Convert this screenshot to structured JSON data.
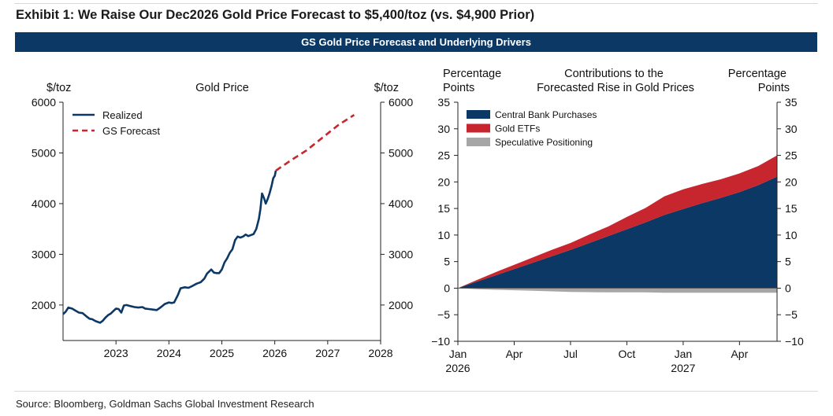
{
  "header": {
    "title": "Exhibit 1: We Raise Our Dec2026 Gold Price Forecast to $5,400/toz (vs. $4,900 Prior)",
    "banner": "GS Gold Price Forecast and Underlying Drivers"
  },
  "footer": {
    "source": "Source: Bloomberg, Goldman Sachs Global Investment Research"
  },
  "colors": {
    "navy": "#0c3866",
    "red": "#c8262e",
    "gray": "#a6a6a6"
  },
  "chart_data": [
    {
      "type": "line",
      "title": "Gold Price",
      "ylabel_left": "$/toz",
      "ylabel_right": "$/toz",
      "ylim": [
        1300,
        6000
      ],
      "yticks": [
        2000,
        3000,
        4000,
        5000,
        6000
      ],
      "xlim": [
        2022.0,
        2028.0
      ],
      "xticks": [
        2023,
        2024,
        2025,
        2026,
        2027,
        2028
      ],
      "xtick_labels": [
        "2023",
        "2024",
        "2025",
        "2026",
        "2027",
        "2028"
      ],
      "legend": "top-left",
      "series": [
        {
          "name": "Realized",
          "color": "#0c3866",
          "style": "solid",
          "x": [
            2022.0,
            2022.05,
            2022.1,
            2022.17,
            2022.25,
            2022.3,
            2022.37,
            2022.45,
            2022.5,
            2022.55,
            2022.62,
            2022.7,
            2022.75,
            2022.8,
            2022.85,
            2022.9,
            2022.95,
            2023.0,
            2023.05,
            2023.1,
            2023.15,
            2023.2,
            2023.27,
            2023.35,
            2023.42,
            2023.5,
            2023.55,
            2023.62,
            2023.7,
            2023.77,
            2023.85,
            2023.92,
            2024.0,
            2024.05,
            2024.1,
            2024.17,
            2024.22,
            2024.3,
            2024.37,
            2024.45,
            2024.52,
            2024.6,
            2024.67,
            2024.72,
            2024.8,
            2024.85,
            2024.9,
            2024.95,
            2025.0,
            2025.05,
            2025.1,
            2025.15,
            2025.2,
            2025.25,
            2025.3,
            2025.35,
            2025.4,
            2025.45,
            2025.5,
            2025.55,
            2025.6,
            2025.65,
            2025.7,
            2025.73,
            2025.76,
            2025.8,
            2025.83,
            2025.87,
            2025.9,
            2025.94,
            2025.97,
            2026.0,
            2026.02
          ],
          "y": [
            1820,
            1870,
            1950,
            1930,
            1880,
            1850,
            1840,
            1770,
            1730,
            1720,
            1680,
            1650,
            1690,
            1750,
            1800,
            1830,
            1880,
            1930,
            1920,
            1850,
            1990,
            2000,
            1980,
            1960,
            1950,
            1960,
            1930,
            1920,
            1910,
            1900,
            1960,
            2020,
            2050,
            2040,
            2050,
            2200,
            2330,
            2350,
            2340,
            2380,
            2420,
            2450,
            2520,
            2620,
            2700,
            2640,
            2630,
            2630,
            2700,
            2840,
            2920,
            3030,
            3100,
            3280,
            3350,
            3330,
            3350,
            3390,
            3360,
            3380,
            3400,
            3500,
            3700,
            3900,
            4200,
            4100,
            4000,
            4100,
            4200,
            4350,
            4500,
            4550,
            4650
          ]
        },
        {
          "name": "GS Forecast",
          "color": "#c8262e",
          "style": "dashed",
          "x": [
            2026.02,
            2026.3,
            2026.6,
            2026.9,
            2027.2,
            2027.5
          ],
          "y": [
            4650,
            4850,
            5050,
            5300,
            5550,
            5750
          ]
        }
      ]
    },
    {
      "type": "area",
      "title": "Contributions to the Forecasted Rise in Gold Prices",
      "ylabel_left": "Percentage Points",
      "ylabel_right": "Percentage Points",
      "ylim": [
        -10,
        35
      ],
      "yticks": [
        -10,
        -5,
        0,
        5,
        10,
        15,
        20,
        25,
        30,
        35
      ],
      "xlim": [
        0,
        12
      ],
      "xticks": [
        0,
        3,
        6,
        9,
        12,
        15
      ],
      "xtick_labels": [
        "Jan",
        "Apr",
        "Jul",
        "Oct",
        "Jan",
        "Apr"
      ],
      "xtick_year_labels": [
        "2026",
        "",
        "",
        "",
        "2027",
        ""
      ],
      "x_months": [
        "Jan 2026",
        "Feb 2026",
        "Mar 2026",
        "Apr 2026",
        "May 2026",
        "Jun 2026",
        "Jul 2026",
        "Aug 2026",
        "Sep 2026",
        "Oct 2026",
        "Nov 2026",
        "Dec 2026",
        "Jan 2027",
        "Feb 2027",
        "Mar 2027",
        "Apr 2027",
        "May 2027",
        "Jun 2027"
      ],
      "legend": "top-left",
      "stacked": true,
      "series": [
        {
          "name": "Central Bank Purchases",
          "color": "#0c3866",
          "values": [
            0,
            1.2,
            2.4,
            3.6,
            4.8,
            6.0,
            7.2,
            8.5,
            9.8,
            11.1,
            12.4,
            13.8,
            14.9,
            16.0,
            17.0,
            18.1,
            19.4,
            21.0
          ]
        },
        {
          "name": "Gold ETFs",
          "color": "#c8262e",
          "values": [
            0,
            0.3,
            0.6,
            0.8,
            1.0,
            1.2,
            1.3,
            1.6,
            1.8,
            2.3,
            2.7,
            3.5,
            3.7,
            3.6,
            3.5,
            3.5,
            3.6,
            4.0
          ]
        },
        {
          "name": "Speculative Positioning",
          "color": "#a6a6a6",
          "values": [
            0,
            -0.2,
            -0.3,
            -0.4,
            -0.5,
            -0.6,
            -0.7,
            -0.75,
            -0.8,
            -0.8,
            -0.8,
            -0.85,
            -0.85,
            -0.85,
            -0.85,
            -0.85,
            -0.85,
            -0.85
          ]
        }
      ]
    }
  ]
}
